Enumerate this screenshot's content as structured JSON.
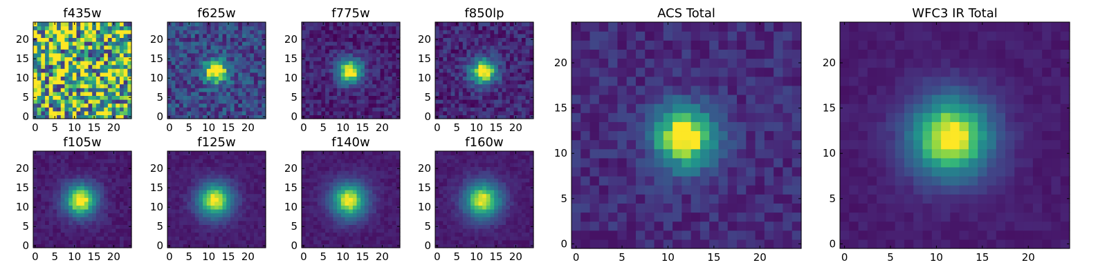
{
  "chart_data": [
    {
      "type": "heatmap",
      "title": "f435w",
      "x_ticks": [
        "0",
        "5",
        "10",
        "15",
        "20"
      ],
      "y_ticks": [
        "0",
        "5",
        "10",
        "15",
        "20"
      ],
      "xlim": [
        -0.5,
        24.5
      ],
      "ylim": [
        -0.5,
        24.5
      ],
      "grid_size": 25,
      "colormap": "viridis",
      "color_range": [
        0,
        1
      ],
      "source_peak": 0.0,
      "source_center": [
        12,
        12
      ],
      "source_sigma": 3.0,
      "background_level": 0.72,
      "noise_amplitude": 0.55,
      "noise_seed": 11
    },
    {
      "type": "heatmap",
      "title": "f625w",
      "x_ticks": [
        "0",
        "5",
        "10",
        "15",
        "20"
      ],
      "y_ticks": [
        "0",
        "5",
        "10",
        "15",
        "20"
      ],
      "xlim": [
        -0.5,
        24.5
      ],
      "ylim": [
        -0.5,
        24.5
      ],
      "grid_size": 25,
      "colormap": "viridis",
      "color_range": [
        0,
        1
      ],
      "source_peak": 0.9,
      "source_center": [
        11.8,
        11.8
      ],
      "source_sigma": 2.1,
      "background_level": 0.28,
      "noise_amplitude": 0.2,
      "noise_seed": 23
    },
    {
      "type": "heatmap",
      "title": "f775w",
      "x_ticks": [
        "0",
        "5",
        "10",
        "15",
        "20"
      ],
      "y_ticks": [
        "0",
        "5",
        "10",
        "15",
        "20"
      ],
      "xlim": [
        -0.5,
        24.5
      ],
      "ylim": [
        -0.5,
        24.5
      ],
      "grid_size": 25,
      "colormap": "viridis",
      "color_range": [
        0,
        1
      ],
      "source_peak": 0.95,
      "source_center": [
        11.8,
        11.8
      ],
      "source_sigma": 2.3,
      "background_level": 0.12,
      "noise_amplitude": 0.12,
      "noise_seed": 37
    },
    {
      "type": "heatmap",
      "title": "f850lp",
      "x_ticks": [
        "0",
        "5",
        "10",
        "15",
        "20"
      ],
      "y_ticks": [
        "0",
        "5",
        "10",
        "15",
        "20"
      ],
      "xlim": [
        -0.5,
        24.5
      ],
      "ylim": [
        -0.5,
        24.5
      ],
      "grid_size": 25,
      "colormap": "viridis",
      "color_range": [
        0,
        1
      ],
      "source_peak": 0.95,
      "source_center": [
        11.8,
        11.8
      ],
      "source_sigma": 2.4,
      "background_level": 0.14,
      "noise_amplitude": 0.14,
      "noise_seed": 41
    },
    {
      "type": "heatmap",
      "title": "f105w",
      "x_ticks": [
        "0",
        "5",
        "10",
        "15",
        "20"
      ],
      "y_ticks": [
        "0",
        "5",
        "10",
        "15",
        "20"
      ],
      "xlim": [
        -0.5,
        24.5
      ],
      "ylim": [
        -0.5,
        24.5
      ],
      "grid_size": 25,
      "colormap": "viridis",
      "color_range": [
        0,
        1
      ],
      "source_peak": 0.95,
      "source_center": [
        11.6,
        11.8
      ],
      "source_sigma": 3.0,
      "background_level": 0.1,
      "noise_amplitude": 0.06,
      "noise_seed": 53
    },
    {
      "type": "heatmap",
      "title": "f125w",
      "x_ticks": [
        "0",
        "5",
        "10",
        "15",
        "20"
      ],
      "y_ticks": [
        "0",
        "5",
        "10",
        "15",
        "20"
      ],
      "xlim": [
        -0.5,
        24.5
      ],
      "ylim": [
        -0.5,
        24.5
      ],
      "grid_size": 25,
      "colormap": "viridis",
      "color_range": [
        0,
        1
      ],
      "source_peak": 0.92,
      "source_center": [
        11.6,
        11.8
      ],
      "source_sigma": 3.2,
      "background_level": 0.1,
      "noise_amplitude": 0.05,
      "noise_seed": 61
    },
    {
      "type": "heatmap",
      "title": "f140w",
      "x_ticks": [
        "0",
        "5",
        "10",
        "15",
        "20"
      ],
      "y_ticks": [
        "0",
        "5",
        "10",
        "15",
        "20"
      ],
      "xlim": [
        -0.5,
        24.5
      ],
      "ylim": [
        -0.5,
        24.5
      ],
      "grid_size": 25,
      "colormap": "viridis",
      "color_range": [
        0,
        1
      ],
      "source_peak": 0.9,
      "source_center": [
        11.6,
        11.8
      ],
      "source_sigma": 3.3,
      "background_level": 0.1,
      "noise_amplitude": 0.05,
      "noise_seed": 71
    },
    {
      "type": "heatmap",
      "title": "f160w",
      "x_ticks": [
        "0",
        "5",
        "10",
        "15",
        "20"
      ],
      "y_ticks": [
        "0",
        "5",
        "10",
        "15",
        "20"
      ],
      "xlim": [
        -0.5,
        24.5
      ],
      "ylim": [
        -0.5,
        24.5
      ],
      "grid_size": 25,
      "colormap": "viridis",
      "color_range": [
        0,
        1
      ],
      "source_peak": 0.9,
      "source_center": [
        11.6,
        11.8
      ],
      "source_sigma": 3.4,
      "background_level": 0.1,
      "noise_amplitude": 0.05,
      "noise_seed": 83
    },
    {
      "type": "heatmap",
      "title": "ACS Total",
      "x_ticks": [
        "0",
        "5",
        "10",
        "15",
        "20"
      ],
      "y_ticks": [
        "0",
        "5",
        "10",
        "15",
        "20"
      ],
      "xlim": [
        -0.5,
        24.5
      ],
      "ylim": [
        -0.5,
        24.5
      ],
      "grid_size": 25,
      "colormap": "viridis",
      "color_range": [
        0,
        1
      ],
      "source_peak": 0.95,
      "source_center": [
        11.8,
        11.8
      ],
      "source_sigma": 2.4,
      "background_level": 0.16,
      "noise_amplitude": 0.1,
      "noise_seed": 97
    },
    {
      "type": "heatmap",
      "title": "WFC3 IR Total",
      "x_ticks": [
        "0",
        "5",
        "10",
        "15",
        "20"
      ],
      "y_ticks": [
        "0",
        "5",
        "10",
        "15",
        "20"
      ],
      "xlim": [
        -0.5,
        24.5
      ],
      "ylim": [
        -0.5,
        24.5
      ],
      "grid_size": 25,
      "colormap": "viridis",
      "color_range": [
        0,
        1
      ],
      "source_peak": 0.95,
      "source_center": [
        11.6,
        11.8
      ],
      "source_sigma": 3.2,
      "background_level": 0.1,
      "noise_amplitude": 0.04,
      "noise_seed": 101
    }
  ]
}
